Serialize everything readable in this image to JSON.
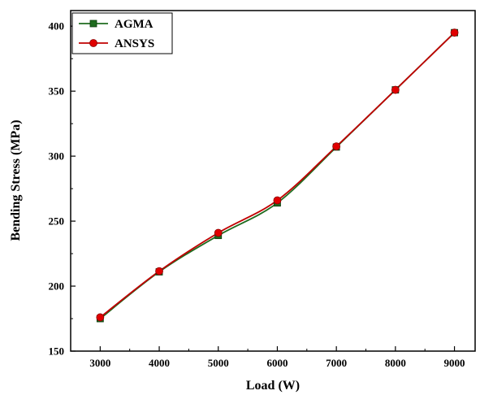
{
  "chart_data": {
    "type": "line",
    "xlabel": "Load (W)",
    "ylabel": "Bending Stress (MPa)",
    "xlim": [
      2500,
      9350
    ],
    "ylim": [
      150,
      412
    ],
    "x_ticks": [
      3000,
      4000,
      5000,
      6000,
      7000,
      8000,
      9000
    ],
    "y_ticks": [
      150,
      200,
      250,
      300,
      350,
      400
    ],
    "grid": false,
    "legend_position": "top-left",
    "series": [
      {
        "name": "AGMA",
        "color": "#1f6b1f",
        "marker": "square",
        "x": [
          3000,
          4000,
          5000,
          6000,
          7000,
          8000,
          9000
        ],
        "y": [
          175,
          211,
          239,
          264,
          307,
          351,
          395
        ]
      },
      {
        "name": "ANSYS",
        "color": "#c00000",
        "marker": "circle",
        "x": [
          3000,
          4000,
          5000,
          6000,
          7000,
          8000,
          9000
        ],
        "y": [
          176,
          211.5,
          241,
          266,
          307.5,
          351,
          395
        ]
      }
    ]
  }
}
